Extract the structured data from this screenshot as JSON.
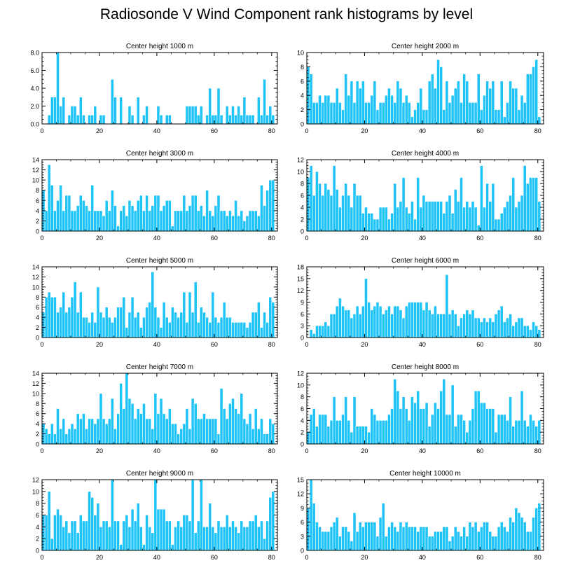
{
  "title": "Radiosonde V Wind Component rank histograms by level",
  "chart_data": [
    {
      "type": "bar",
      "title": "Center height 1000 m",
      "ylim": [
        0,
        8
      ],
      "yticks": [
        0,
        2,
        4,
        6,
        8
      ],
      "ytick_labels": [
        "0.0",
        "2.0",
        "4.0",
        "6.0",
        "8.0"
      ],
      "xlim": [
        0,
        82
      ],
      "xticks": [
        0,
        20,
        40,
        60,
        80
      ],
      "values": [
        0,
        0,
        1,
        3,
        3,
        8,
        2,
        3,
        0,
        1,
        2,
        2,
        1,
        3,
        1,
        0,
        1,
        1,
        2,
        0,
        1,
        1,
        0,
        0,
        5,
        3,
        0,
        3,
        0,
        0,
        2,
        1,
        0,
        3,
        0,
        1,
        2,
        0,
        0,
        0,
        2,
        1,
        0,
        1,
        1,
        0,
        0,
        0,
        0,
        0,
        2,
        2,
        2,
        2,
        1,
        2,
        0,
        1,
        4,
        1,
        1,
        4,
        1,
        0,
        2,
        1,
        2,
        1,
        2,
        1,
        3,
        1,
        1,
        1,
        0,
        3,
        1,
        5,
        1,
        2,
        1,
        0
      ]
    },
    {
      "type": "bar",
      "title": "Center height 2000 m",
      "ylim": [
        0,
        10
      ],
      "yticks": [
        0,
        2,
        4,
        6,
        8,
        10
      ],
      "ytick_labels": [
        "0",
        "2",
        "4",
        "6",
        "8",
        "10"
      ],
      "xlim": [
        0,
        82
      ],
      "xticks": [
        0,
        20,
        40,
        60,
        80
      ],
      "values": [
        8,
        7,
        3,
        3,
        4,
        3,
        4,
        4,
        3,
        3,
        5,
        3,
        2,
        7,
        4,
        6,
        3,
        6,
        5,
        6,
        3,
        3,
        4,
        6,
        2,
        3,
        3,
        4,
        5,
        4,
        3,
        6,
        5,
        3,
        4,
        3,
        1,
        2,
        3,
        5,
        2,
        2,
        6,
        7,
        5,
        9,
        8,
        2,
        6,
        3,
        4,
        5,
        6,
        3,
        7,
        6,
        3,
        3,
        3,
        7,
        2,
        4,
        6,
        5,
        6,
        2,
        2,
        6,
        1,
        3,
        6,
        5,
        5,
        2,
        4,
        3,
        7,
        7,
        8,
        9,
        1,
        0
      ]
    },
    {
      "type": "bar",
      "title": "Center height 3000 m",
      "ylim": [
        0,
        14
      ],
      "yticks": [
        0,
        2,
        4,
        6,
        8,
        10,
        12,
        14
      ],
      "ytick_labels": [
        "0",
        "2",
        "4",
        "6",
        "8",
        "10",
        "12",
        "14"
      ],
      "xlim": [
        0,
        82
      ],
      "xticks": [
        0,
        20,
        40,
        60,
        80
      ],
      "values": [
        8,
        4,
        13,
        9,
        4,
        6,
        9,
        4,
        7,
        7,
        4,
        4,
        5,
        7,
        6,
        5,
        4,
        9,
        4,
        4,
        4,
        3,
        6,
        4,
        8,
        5,
        1,
        4,
        5,
        3,
        6,
        5,
        4,
        6,
        7,
        4,
        7,
        4,
        5,
        7,
        7,
        4,
        5,
        6,
        6,
        1,
        4,
        4,
        4,
        7,
        4,
        5,
        7,
        7,
        4,
        5,
        3,
        8,
        4,
        3,
        5,
        7,
        4,
        4,
        3,
        4,
        3,
        6,
        3,
        4,
        2,
        3,
        4,
        4,
        4,
        3,
        9,
        5,
        8,
        10,
        10,
        0
      ]
    },
    {
      "type": "bar",
      "title": "Center height 4000 m",
      "ylim": [
        0,
        12
      ],
      "yticks": [
        0,
        2,
        4,
        6,
        8,
        10,
        12
      ],
      "ytick_labels": [
        "0",
        "2",
        "4",
        "6",
        "8",
        "10",
        "12"
      ],
      "xlim": [
        0,
        82
      ],
      "xticks": [
        0,
        20,
        40,
        60,
        80
      ],
      "values": [
        9,
        11,
        6,
        10,
        8,
        6,
        8,
        7,
        6,
        11,
        7,
        4,
        6,
        8,
        6,
        4,
        8,
        6,
        6,
        3,
        4,
        3,
        3,
        2,
        2,
        4,
        4,
        4,
        2,
        3,
        8,
        4,
        5,
        9,
        4,
        3,
        5,
        2,
        9,
        4,
        6,
        5,
        5,
        5,
        5,
        5,
        5,
        3,
        5,
        6,
        3,
        7,
        5,
        9,
        4,
        5,
        4,
        5,
        4,
        1,
        11,
        4,
        8,
        5,
        8,
        2,
        2,
        3,
        4,
        5,
        6,
        9,
        4,
        5,
        6,
        11,
        8,
        9,
        9,
        9,
        5,
        0
      ]
    },
    {
      "type": "bar",
      "title": "Center height 5000 m",
      "ylim": [
        0,
        14
      ],
      "yticks": [
        0,
        2,
        4,
        6,
        8,
        10,
        12,
        14
      ],
      "ytick_labels": [
        "0",
        "2",
        "4",
        "6",
        "8",
        "10",
        "12",
        "14"
      ],
      "xlim": [
        0,
        82
      ],
      "xticks": [
        0,
        20,
        40,
        60,
        80
      ],
      "values": [
        5,
        8,
        9,
        8,
        8,
        5,
        6,
        9,
        5,
        6,
        8,
        11,
        5,
        9,
        4,
        4,
        3,
        5,
        3,
        10,
        5,
        4,
        6,
        4,
        3,
        4,
        6,
        6,
        8,
        2,
        5,
        8,
        4,
        5,
        2,
        4,
        6,
        7,
        13,
        6,
        4,
        2,
        7,
        4,
        3,
        6,
        5,
        4,
        5,
        9,
        3,
        9,
        5,
        11,
        3,
        6,
        5,
        4,
        3,
        9,
        4,
        3,
        4,
        7,
        4,
        4,
        3,
        3,
        3,
        3,
        3,
        2,
        3,
        5,
        5,
        7,
        2,
        5,
        3,
        8,
        7,
        0
      ]
    },
    {
      "type": "bar",
      "title": "Center height 6000 m",
      "ylim": [
        0,
        18
      ],
      "yticks": [
        0,
        3,
        6,
        9,
        12,
        15,
        18
      ],
      "ytick_labels": [
        "0",
        "3",
        "6",
        "9",
        "12",
        "15",
        "18"
      ],
      "xlim": [
        0,
        82
      ],
      "xticks": [
        0,
        20,
        40,
        60,
        80
      ],
      "values": [
        0,
        2,
        1,
        3,
        3,
        3,
        4,
        3,
        6,
        6,
        8,
        10,
        8,
        7,
        7,
        5,
        6,
        8,
        6,
        8,
        15,
        9,
        7,
        8,
        9,
        8,
        6,
        7,
        8,
        6,
        8,
        8,
        7,
        5,
        8,
        9,
        9,
        9,
        9,
        9,
        7,
        9,
        7,
        6,
        8,
        6,
        6,
        6,
        16,
        6,
        7,
        6,
        3,
        5,
        6,
        7,
        6,
        7,
        5,
        5,
        4,
        5,
        4,
        5,
        4,
        6,
        7,
        8,
        4,
        5,
        6,
        3,
        4,
        5,
        5,
        3,
        3,
        2,
        4,
        3,
        2,
        0
      ]
    },
    {
      "type": "bar",
      "title": "Center height 7000 m",
      "ylim": [
        0,
        14
      ],
      "yticks": [
        0,
        2,
        4,
        6,
        8,
        10,
        12,
        14
      ],
      "ytick_labels": [
        "0",
        "2",
        "4",
        "6",
        "8",
        "10",
        "12",
        "14"
      ],
      "xlim": [
        0,
        82
      ],
      "xticks": [
        0,
        20,
        40,
        60,
        80
      ],
      "values": [
        4,
        3,
        2,
        4,
        2,
        7,
        3,
        5,
        2,
        3,
        4,
        3,
        6,
        5,
        6,
        3,
        5,
        5,
        4,
        5,
        10,
        5,
        4,
        5,
        9,
        3,
        6,
        12,
        7,
        14,
        9,
        8,
        5,
        7,
        6,
        8,
        5,
        5,
        3,
        10,
        6,
        9,
        6,
        5,
        7,
        4,
        4,
        2,
        3,
        4,
        7,
        3,
        9,
        8,
        5,
        5,
        6,
        5,
        5,
        5,
        5,
        2,
        11,
        7,
        5,
        8,
        9,
        7,
        6,
        10,
        5,
        4,
        6,
        3,
        7,
        3,
        5,
        2,
        2,
        5,
        4,
        0
      ]
    },
    {
      "type": "bar",
      "title": "Center height 8000 m",
      "ylim": [
        0,
        12
      ],
      "yticks": [
        0,
        2,
        4,
        6,
        8,
        10,
        12
      ],
      "ytick_labels": [
        "0",
        "2",
        "4",
        "6",
        "8",
        "10",
        "12"
      ],
      "xlim": [
        0,
        82
      ],
      "xticks": [
        0,
        20,
        40,
        60,
        80
      ],
      "values": [
        2,
        5,
        6,
        3,
        5,
        5,
        5,
        3,
        4,
        8,
        4,
        4,
        5,
        8,
        4,
        2,
        8,
        3,
        3,
        3,
        3,
        2,
        6,
        5,
        4,
        4,
        4,
        4,
        5,
        6,
        11,
        9,
        6,
        8,
        6,
        4,
        8,
        7,
        9,
        6,
        6,
        7,
        3,
        5,
        7,
        6,
        9,
        11,
        5,
        5,
        10,
        3,
        5,
        5,
        4,
        2,
        4,
        6,
        9,
        9,
        7,
        7,
        6,
        6,
        6,
        2,
        5,
        5,
        5,
        4,
        8,
        3,
        4,
        4,
        9,
        4,
        3,
        5,
        4,
        3,
        4,
        0
      ]
    },
    {
      "type": "bar",
      "title": "Center height 9000 m",
      "ylim": [
        0,
        12
      ],
      "yticks": [
        0,
        2,
        4,
        6,
        8,
        10,
        12
      ],
      "ytick_labels": [
        "0",
        "2",
        "4",
        "6",
        "8",
        "10",
        "12"
      ],
      "xlim": [
        0,
        82
      ],
      "xticks": [
        0,
        20,
        40,
        60,
        80
      ],
      "values": [
        6,
        6,
        10,
        2,
        6,
        7,
        6,
        4,
        5,
        3,
        5,
        5,
        3,
        6,
        5,
        5,
        10,
        9,
        6,
        8,
        4,
        5,
        5,
        4,
        12,
        5,
        5,
        1,
        5,
        6,
        4,
        7,
        5,
        8,
        4,
        1,
        6,
        4,
        3,
        12,
        7,
        7,
        7,
        5,
        5,
        1,
        4,
        5,
        4,
        6,
        6,
        5,
        12,
        3,
        5,
        12,
        4,
        4,
        8,
        4,
        3,
        5,
        4,
        4,
        6,
        4,
        5,
        4,
        3,
        5,
        4,
        4,
        5,
        5,
        6,
        4,
        5,
        2,
        5,
        9,
        10,
        0
      ]
    },
    {
      "type": "bar",
      "title": "Center height 10000 m",
      "ylim": [
        0,
        15
      ],
      "yticks": [
        0,
        3,
        6,
        9,
        12,
        15
      ],
      "ytick_labels": [
        "0",
        "3",
        "6",
        "9",
        "12",
        "15"
      ],
      "xlim": [
        0,
        82
      ],
      "xticks": [
        0,
        20,
        40,
        60,
        80
      ],
      "values": [
        9,
        15,
        10,
        6,
        5,
        4,
        4,
        4,
        5,
        6,
        7,
        3,
        5,
        5,
        4,
        2,
        8,
        4,
        6,
        5,
        6,
        6,
        6,
        6,
        3,
        7,
        10,
        3,
        5,
        6,
        5,
        4,
        6,
        5,
        6,
        5,
        5,
        5,
        4,
        5,
        5,
        5,
        3,
        3,
        4,
        4,
        4,
        5,
        5,
        2,
        3,
        5,
        4,
        3,
        5,
        3,
        6,
        5,
        6,
        4,
        5,
        6,
        6,
        4,
        3,
        3,
        5,
        6,
        5,
        4,
        7,
        6,
        9,
        8,
        7,
        6,
        4,
        4,
        7,
        9,
        10,
        0
      ]
    }
  ]
}
